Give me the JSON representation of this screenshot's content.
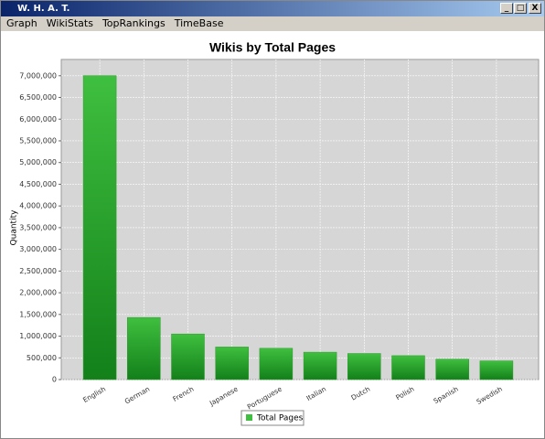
{
  "window": {
    "title": "W. H. A. T."
  },
  "menu": [
    "Graph",
    "WikiStats",
    "TopRankings",
    "TimeBase"
  ],
  "chart_data": {
    "type": "bar",
    "title": "Wikis by Total Pages",
    "y_label": "Quantity",
    "categories": [
      "English",
      "German",
      "French",
      "Japanese",
      "Portuguese",
      "Italian",
      "Dutch",
      "Polish",
      "Spanish",
      "Swedish"
    ],
    "series": [
      {
        "name": "Total Pages",
        "color": "#3fbf3f",
        "values": [
          7000000,
          1430000,
          1050000,
          750000,
          720000,
          630000,
          600000,
          550000,
          470000,
          430000
        ]
      }
    ],
    "ylim": [
      0,
      7375000
    ],
    "yticks": [
      {
        "value": 0,
        "label": "0"
      },
      {
        "value": 500000,
        "label": "500,000"
      },
      {
        "value": 1000000,
        "label": "1,000,000"
      },
      {
        "value": 1500000,
        "label": "1,500,000"
      },
      {
        "value": 2000000,
        "label": "2,000,000"
      },
      {
        "value": 2500000,
        "label": "2,500,000"
      },
      {
        "value": 3000000,
        "label": "3,000,000"
      },
      {
        "value": 3500000,
        "label": "3,500,000"
      },
      {
        "value": 4000000,
        "label": "4,000,000"
      },
      {
        "value": 4500000,
        "label": "4,500,000"
      },
      {
        "value": 5000000,
        "label": "5,000,000"
      },
      {
        "value": 5500000,
        "label": "5,500,000"
      },
      {
        "value": 6000000,
        "label": "6,000,000"
      },
      {
        "value": 6500000,
        "label": "6,500,000"
      },
      {
        "value": 7000000,
        "label": "7,000,000"
      }
    ],
    "grid": true,
    "legend": "bottom"
  }
}
